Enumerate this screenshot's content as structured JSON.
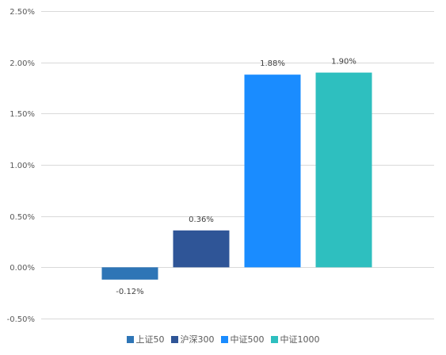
{
  "chart_data": {
    "type": "bar",
    "categories": [
      "上证50",
      "沪深300",
      "中证500",
      "中证1000"
    ],
    "values": [
      -0.12,
      0.36,
      1.88,
      1.9
    ],
    "value_labels": [
      "-0.12%",
      "0.36%",
      "1.88%",
      "1.90%"
    ],
    "colors": [
      "#2e75b6",
      "#2f5597",
      "#1a8cff",
      "#2ebfbf"
    ],
    "ylim": [
      -0.5,
      2.5
    ],
    "yticks": [
      -0.5,
      0.0,
      0.5,
      1.0,
      1.5,
      2.0,
      2.5
    ],
    "ytick_labels": [
      "-0.50%",
      "0.00%",
      "0.50%",
      "1.00%",
      "1.50%",
      "2.00%",
      "2.50%"
    ],
    "grid": true,
    "legend_position": "bottom",
    "title": "",
    "xlabel": "",
    "ylabel": ""
  }
}
